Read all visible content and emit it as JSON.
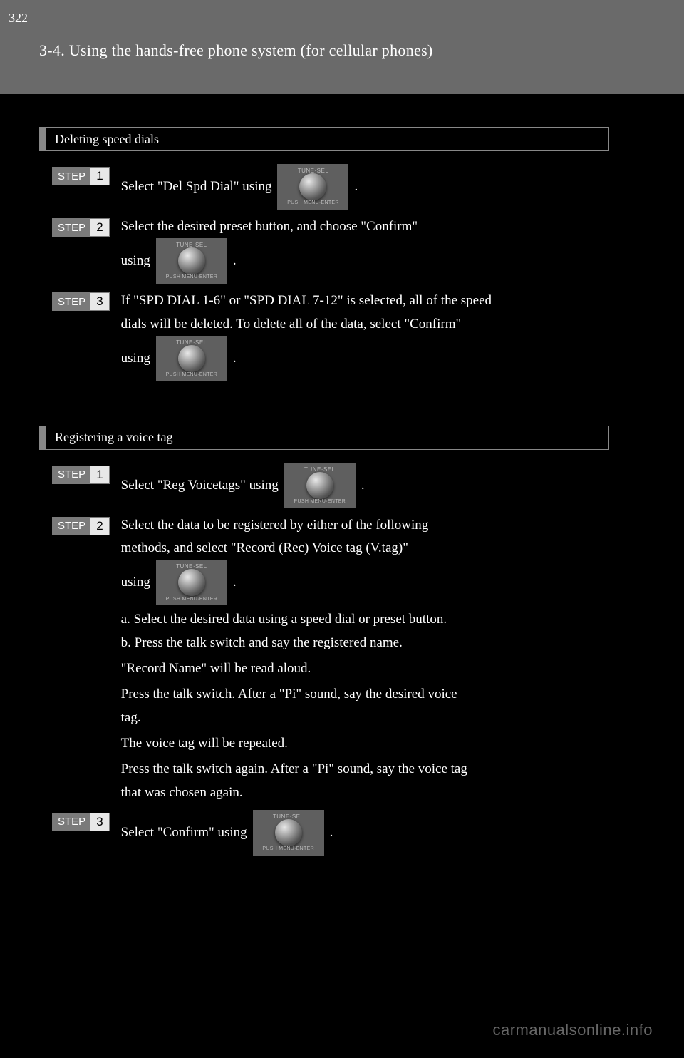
{
  "page_number": "322",
  "header": "3-4. Using the hands-free phone system (for cellular phones)",
  "knob": {
    "top": "TUNE·SEL",
    "bottom": "PUSH MENU·ENTER"
  },
  "step_label": "STEP",
  "section1": {
    "title": "Deleting speed dials",
    "s1_a": "Select \"Del Spd Dial\" using ",
    "s1_b": ".",
    "s2_a": "Select the desired preset button, and choose \"Confirm\"",
    "s2_b": "using ",
    "s2_c": ".",
    "s3_a": "If \"SPD DIAL 1-6\" or \"SPD DIAL 7-12\" is selected, all of the speed",
    "s3_b": "dials will be deleted. To delete all of the data, select \"Confirm\"",
    "s3_c": "using ",
    "s3_d": "."
  },
  "section2": {
    "title": "Registering a voice tag",
    "s1_a": "Select \"Reg Voicetags\" using ",
    "s1_b": ".",
    "s2_a": "Select the data to be registered by either of the following",
    "s2_b": "methods, and select \"Record (Rec) Voice tag (V.tag)\"",
    "s2_c": "using ",
    "s2_d": ".",
    "s2_e": "a. Select the desired data using a speed dial or preset button.",
    "s2_f": "b. Press the talk switch and say the registered name.",
    "s2_g": "\"Record Name\" will be read aloud.",
    "s2_h": "Press the talk switch. After a \"Pi\" sound, say the desired voice",
    "s2_i": "tag.",
    "s2_j": "The voice tag will be repeated.",
    "s2_k": "Press the talk switch again. After a \"Pi\" sound, say the voice tag",
    "s2_l": "that was chosen again.",
    "s3_a": "Select \"Confirm\" using ",
    "s3_b": "."
  },
  "watermark": "carmanualsonline.info"
}
